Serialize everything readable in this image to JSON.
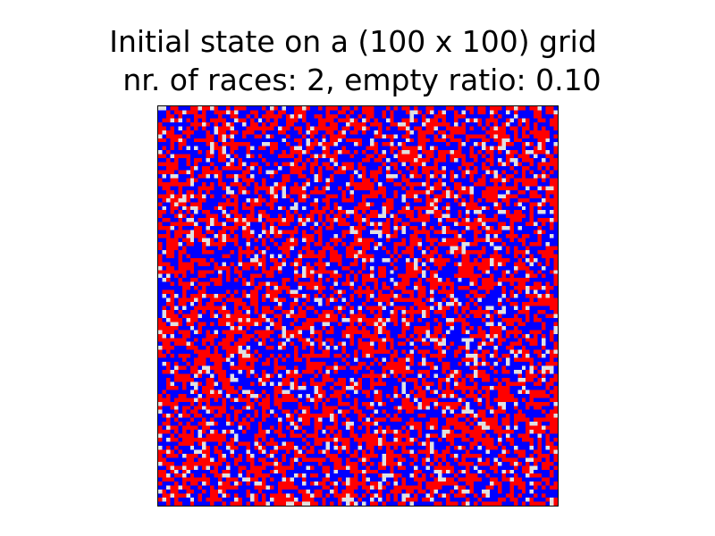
{
  "chart_data": {
    "type": "heatmap",
    "title_lines": [
      "Initial state on a (100 x 100) grid",
      "nr. of races: 2, empty ratio: 0.10"
    ],
    "grid_rows": 100,
    "grid_cols": 100,
    "races": 2,
    "empty_ratio": 0.1,
    "colors": {
      "empty": "#e0e0e0",
      "race_1": "#0000ff",
      "race_2": "#ff0000",
      "background": "#ffffff",
      "frame": "#000000"
    },
    "xlabel": "",
    "ylabel": "",
    "grid": false
  }
}
